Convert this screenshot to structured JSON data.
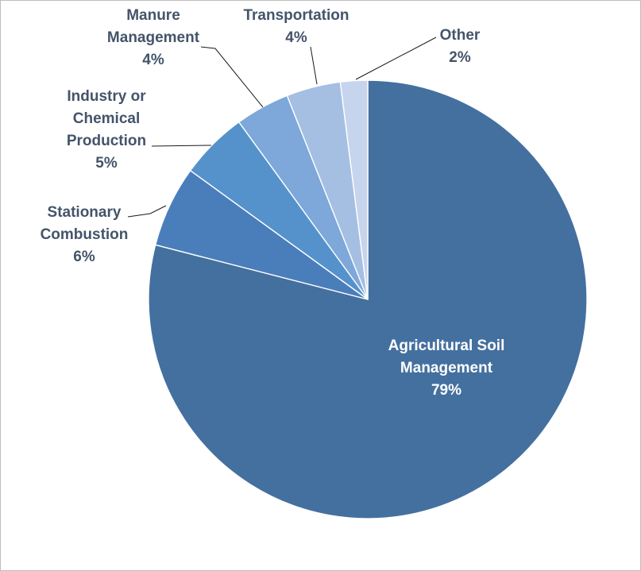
{
  "chart_data": {
    "type": "pie",
    "slices": [
      {
        "name_lines": [
          "Agricultural Soil",
          "Management"
        ],
        "percent_label": "79%",
        "value": 79,
        "color": "#44709f"
      },
      {
        "name_lines": [
          "Stationary",
          "Combustion"
        ],
        "percent_label": "6%",
        "value": 6,
        "color": "#4a7ebb"
      },
      {
        "name_lines": [
          "Industry or",
          "Chemical",
          "Production"
        ],
        "percent_label": "5%",
        "value": 5,
        "color": "#5592cc"
      },
      {
        "name_lines": [
          "Manure",
          "Management"
        ],
        "percent_label": "4%",
        "value": 4,
        "color": "#7ea7da"
      },
      {
        "name_lines": [
          "Transportation"
        ],
        "percent_label": "4%",
        "value": 4,
        "color": "#a5bfe3"
      },
      {
        "name_lines": [
          "Other"
        ],
        "percent_label": "2%",
        "value": 2,
        "color": "#c6d5ed"
      }
    ],
    "label_color": "#44546a",
    "inside_label_color": "#ffffff",
    "legend": "none"
  }
}
